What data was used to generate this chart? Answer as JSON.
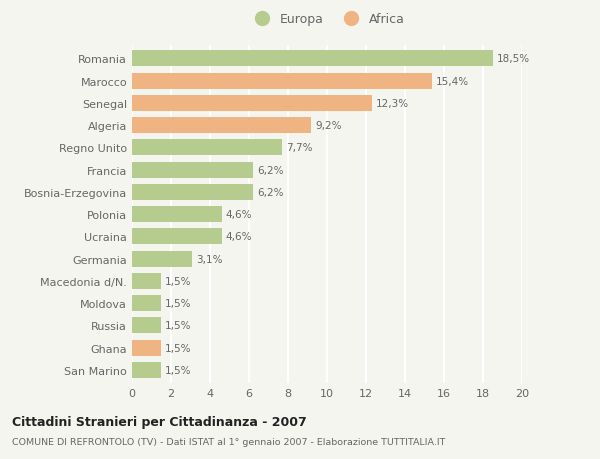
{
  "title": "Cittadini Stranieri per Cittadinanza - 2007",
  "subtitle": "COMUNE DI REFRONTOLO (TV) - Dati ISTAT al 1° gennaio 2007 - Elaborazione TUTTITALIA.IT",
  "categories": [
    "Romania",
    "Marocco",
    "Senegal",
    "Algeria",
    "Regno Unito",
    "Francia",
    "Bosnia-Erzegovina",
    "Polonia",
    "Ucraina",
    "Germania",
    "Macedonia d/N.",
    "Moldova",
    "Russia",
    "Ghana",
    "San Marino"
  ],
  "values": [
    18.5,
    15.4,
    12.3,
    9.2,
    7.7,
    6.2,
    6.2,
    4.6,
    4.6,
    3.1,
    1.5,
    1.5,
    1.5,
    1.5,
    1.5
  ],
  "labels": [
    "18,5%",
    "15,4%",
    "12,3%",
    "9,2%",
    "7,7%",
    "6,2%",
    "6,2%",
    "4,6%",
    "4,6%",
    "3,1%",
    "1,5%",
    "1,5%",
    "1,5%",
    "1,5%",
    "1,5%"
  ],
  "continent": [
    "Europa",
    "Africa",
    "Africa",
    "Africa",
    "Europa",
    "Europa",
    "Europa",
    "Europa",
    "Europa",
    "Europa",
    "Europa",
    "Europa",
    "Europa",
    "Africa",
    "Europa"
  ],
  "color_europa": "#b5cc8e",
  "color_africa": "#f0b482",
  "legend_europa": "Europa",
  "legend_africa": "Africa",
  "xlim": [
    0,
    20
  ],
  "xticks": [
    0,
    2,
    4,
    6,
    8,
    10,
    12,
    14,
    16,
    18,
    20
  ],
  "background_color": "#f5f5f0",
  "grid_color": "#ffffff",
  "bar_height": 0.72,
  "label_fontsize": 7.5,
  "tick_fontsize": 8.0,
  "text_color": "#666666",
  "title_color": "#222222",
  "subtitle_color": "#666666"
}
